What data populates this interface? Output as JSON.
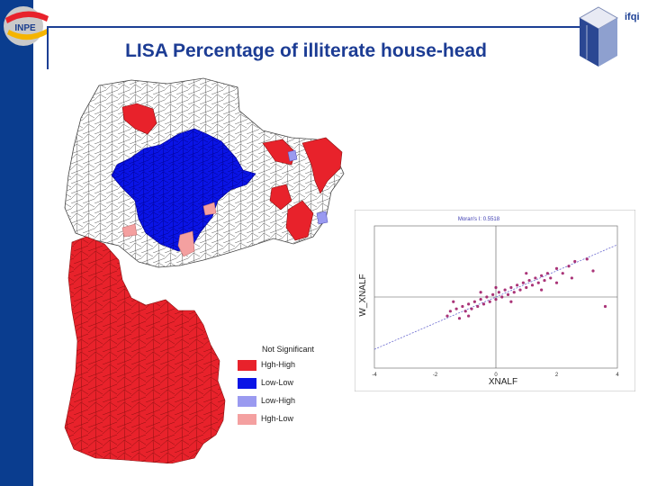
{
  "slide": {
    "title": "LISA Percentage of illiterate house-head",
    "brand": "ifqi"
  },
  "logo": {
    "text": "INPE"
  },
  "legend": {
    "title": "Not Significant",
    "items": [
      {
        "label": "Hgh-High",
        "color": "#e8222b"
      },
      {
        "label": "Low-Low",
        "color": "#0a14e6"
      },
      {
        "label": "Low-High",
        "color": "#9a9af0"
      },
      {
        "label": "Hgh-Low",
        "color": "#f4a0a0"
      }
    ]
  },
  "colors": {
    "sidebar": "#0a3d8f",
    "title": "#1c3c94",
    "not_significant": "#ffffff"
  },
  "chart_data": {
    "type": "scatter",
    "title": "Moran's I: 0.5518",
    "xlabel": "XNALF",
    "ylabel": "W_XNALF",
    "xlim": [
      -4,
      4
    ],
    "ylim": [
      -3,
      3
    ],
    "xticks": [
      -4,
      -2,
      0,
      2,
      4
    ],
    "regression": {
      "slope": 0.5518,
      "intercept": 0
    },
    "points": [
      [
        -1.6,
        -0.8
      ],
      [
        -1.5,
        -0.6
      ],
      [
        -1.3,
        -0.5
      ],
      [
        -1.2,
        -0.9
      ],
      [
        -1.1,
        -0.4
      ],
      [
        -1.0,
        -0.6
      ],
      [
        -0.9,
        -0.3
      ],
      [
        -0.8,
        -0.5
      ],
      [
        -0.7,
        -0.2
      ],
      [
        -0.6,
        -0.4
      ],
      [
        -0.5,
        -0.1
      ],
      [
        -0.4,
        -0.3
      ],
      [
        -0.3,
        0.0
      ],
      [
        -0.2,
        -0.2
      ],
      [
        -0.1,
        0.1
      ],
      [
        0.0,
        -0.1
      ],
      [
        0.1,
        0.2
      ],
      [
        0.2,
        0.0
      ],
      [
        0.3,
        0.3
      ],
      [
        0.4,
        0.1
      ],
      [
        0.5,
        0.4
      ],
      [
        0.6,
        0.2
      ],
      [
        0.7,
        0.5
      ],
      [
        0.8,
        0.3
      ],
      [
        0.9,
        0.6
      ],
      [
        1.0,
        0.4
      ],
      [
        1.1,
        0.7
      ],
      [
        1.2,
        0.5
      ],
      [
        1.3,
        0.8
      ],
      [
        1.4,
        0.6
      ],
      [
        1.5,
        0.9
      ],
      [
        1.6,
        0.7
      ],
      [
        1.7,
        1.0
      ],
      [
        1.8,
        0.8
      ],
      [
        2.0,
        1.2
      ],
      [
        2.2,
        1.0
      ],
      [
        2.4,
        1.3
      ],
      [
        2.6,
        1.5
      ],
      [
        3.0,
        1.6
      ],
      [
        3.6,
        -0.4
      ],
      [
        -1.4,
        -0.2
      ],
      [
        -0.9,
        -0.8
      ],
      [
        -0.5,
        0.2
      ],
      [
        0.0,
        0.4
      ],
      [
        0.5,
        -0.2
      ],
      [
        1.0,
        1.0
      ],
      [
        1.5,
        0.3
      ],
      [
        2.0,
        0.6
      ],
      [
        2.5,
        0.8
      ],
      [
        3.2,
        1.1
      ]
    ]
  }
}
